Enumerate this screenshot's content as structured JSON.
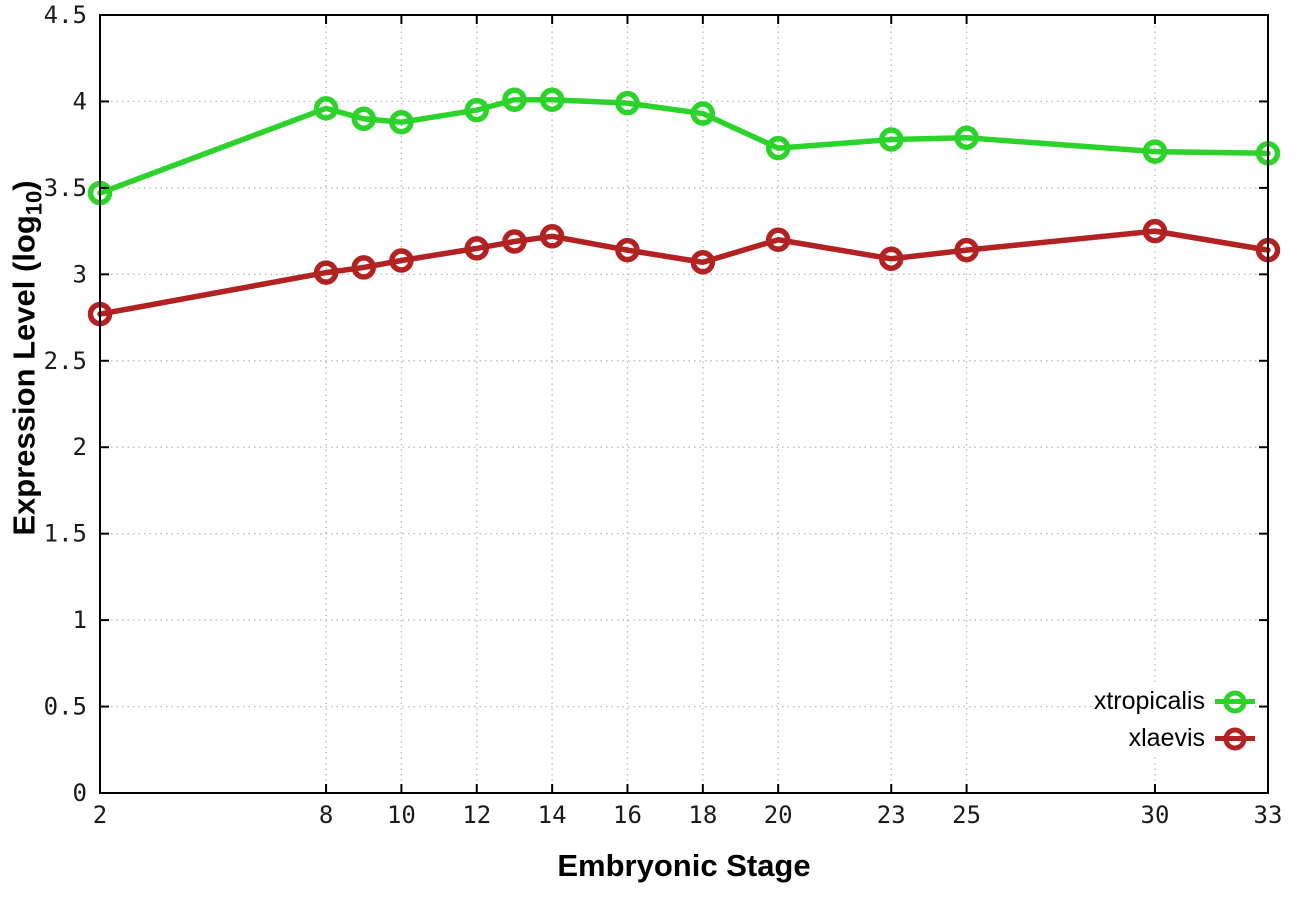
{
  "page": {
    "background": "#ffffff",
    "axis_color": "#000000",
    "grid_color": "#bbbbbb",
    "tick_label_color": "#1a1a1a"
  },
  "chart_data": {
    "type": "line",
    "title": "",
    "xlabel": "Embryonic Stage",
    "ylabel": "Expression Level (log10)",
    "ylabel_parts": {
      "pre": "Expression Level (log",
      "sub": "10",
      "post": ")"
    },
    "x": [
      2,
      8,
      9,
      10,
      12,
      13,
      14,
      16,
      18,
      20,
      23,
      25,
      30,
      33
    ],
    "xticks": [
      2,
      8,
      10,
      12,
      14,
      16,
      18,
      20,
      23,
      25,
      30,
      33
    ],
    "yticks": [
      0,
      0.5,
      1,
      1.5,
      2,
      2.5,
      3,
      3.5,
      4,
      4.5
    ],
    "xlim": [
      2,
      33
    ],
    "ylim": [
      0,
      4.5
    ],
    "grid": true,
    "legend_position": "inside-bottom-right",
    "series": [
      {
        "name": "xtropicalis",
        "color": "#2bd32b",
        "values": [
          3.47,
          3.96,
          3.9,
          3.88,
          3.95,
          4.01,
          4.01,
          3.99,
          3.93,
          3.73,
          3.78,
          3.79,
          3.71,
          3.7
        ]
      },
      {
        "name": "xlaevis",
        "color": "#b22222",
        "values": [
          2.77,
          3.01,
          3.04,
          3.08,
          3.15,
          3.19,
          3.22,
          3.14,
          3.07,
          3.2,
          3.09,
          3.14,
          3.25,
          3.14
        ]
      }
    ]
  }
}
